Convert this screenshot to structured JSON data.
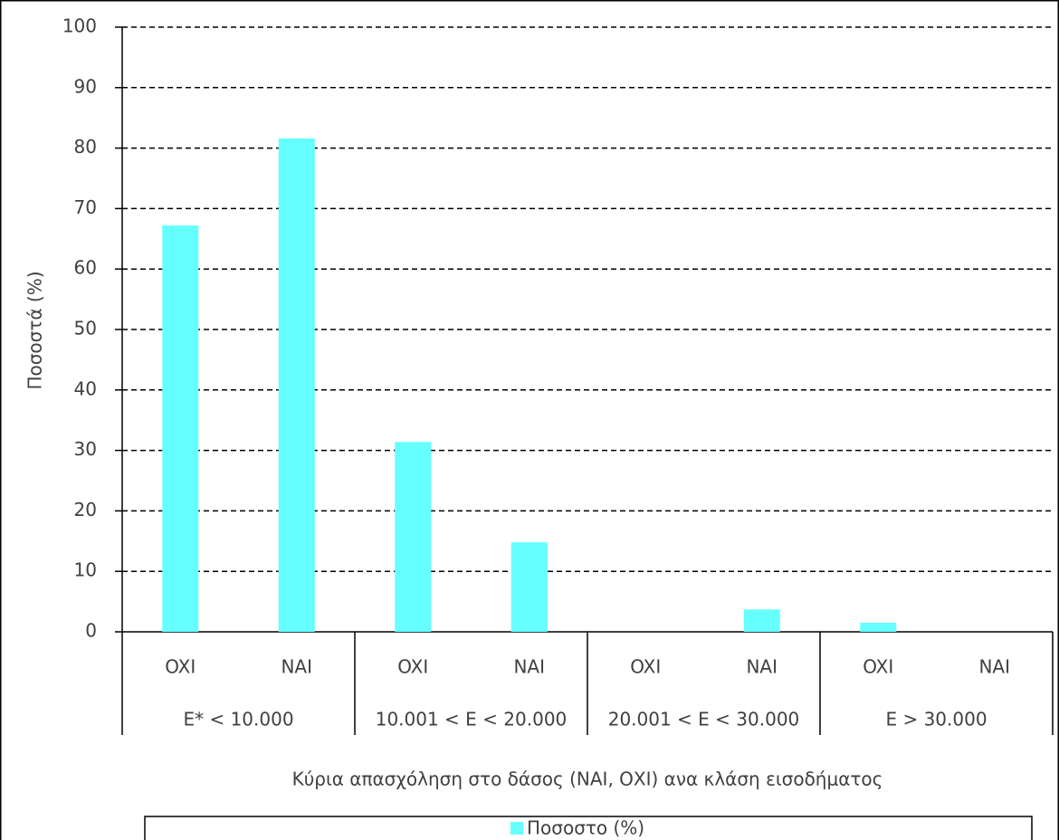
{
  "chart_data": {
    "type": "bar",
    "x_label": "Κύρια απασχόληση στο δάσος (ΝΑΙ, ΟΧΙ) ανα κλάση εισοδήματος",
    "y_label": "Ποσοστά (%)",
    "categories": [
      "OXI",
      "NAI",
      "OXI",
      "NAI",
      "OXI",
      "NAI",
      "OXI",
      "NAI"
    ],
    "category_groups": [
      "E* < 10.000",
      "10.001 < E < 20.000",
      "20.001 < E < 30.000",
      "E > 30.000"
    ],
    "series": [
      {
        "name": "Ποσοστο (%)",
        "color": "#66ffff",
        "values": [
          67.2,
          81.6,
          31.4,
          14.8,
          0,
          3.7,
          1.5,
          0
        ]
      }
    ],
    "ylim": [
      0,
      100
    ],
    "yticks": [
      0,
      10,
      20,
      30,
      40,
      50,
      60,
      70,
      80,
      90,
      100
    ],
    "grid": true,
    "legend": "bottom"
  }
}
